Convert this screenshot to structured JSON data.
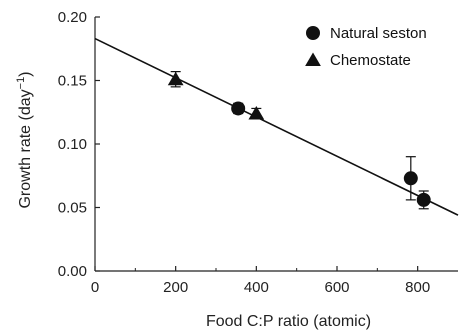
{
  "chart_data": {
    "type": "scatter",
    "xlabel": "Food C:P ratio (atomic)",
    "ylabel_main": "Growth rate (day",
    "ylabel_sup": "−1",
    "ylabel_close": ")",
    "xlim": [
      0,
      900
    ],
    "ylim": [
      0,
      0.2
    ],
    "x_ticks": [
      0,
      200,
      400,
      600,
      800
    ],
    "x_tick_labels": [
      "0",
      "200",
      "400",
      "600",
      "800"
    ],
    "y_ticks": [
      0,
      0.05,
      0.1,
      0.15,
      0.2
    ],
    "y_tick_labels": [
      "0.00",
      "0.05",
      "0.10",
      "0.15",
      "0.20"
    ],
    "legend_position": "top-right",
    "series": [
      {
        "name": "Natural seston",
        "marker": "circle",
        "points": [
          {
            "x": 355,
            "y": 0.128,
            "err": 0.004
          },
          {
            "x": 783,
            "y": 0.073,
            "err": 0.017
          },
          {
            "x": 815,
            "y": 0.056,
            "err": 0.007
          }
        ]
      },
      {
        "name": "Chemostate",
        "marker": "triangle",
        "points": [
          {
            "x": 200,
            "y": 0.151,
            "err": 0.006
          },
          {
            "x": 400,
            "y": 0.124,
            "err": 0.004
          }
        ]
      }
    ],
    "regression_line": {
      "x_start": 0,
      "y_start": 0.183,
      "x_end": 900,
      "y_end": 0.044
    }
  }
}
